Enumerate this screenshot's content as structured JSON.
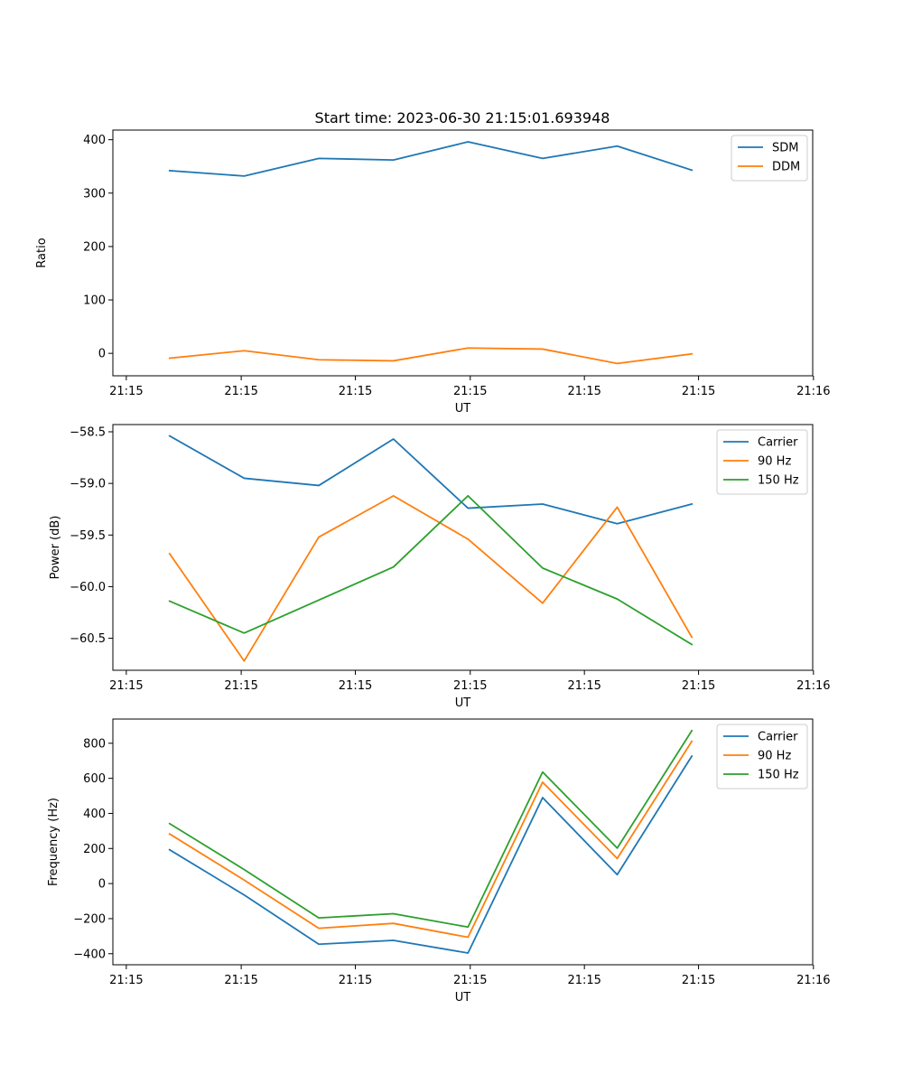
{
  "figure": {
    "title": "Start time: 2023-06-30 21:15:01.693948"
  },
  "chart_data": [
    {
      "type": "line",
      "title": "Start time: 2023-06-30 21:15:01.693948",
      "xlabel": "UT",
      "ylabel": "Ratio",
      "x": [
        0,
        1,
        2,
        3,
        4,
        5,
        6,
        7
      ],
      "xlim": [
        -0.76,
        8.62
      ],
      "x_ticks": [
        -0.58,
        0.96,
        2.49,
        4.03,
        5.56,
        7.09,
        8.63
      ],
      "x_tick_labels": [
        "21:15",
        "21:15",
        "21:15",
        "21:15",
        "21:15",
        "21:15",
        "21:16"
      ],
      "ylim": [
        -42,
        418
      ],
      "y_ticks": [
        0,
        100,
        200,
        300,
        400
      ],
      "y_tick_labels": [
        "0",
        "100",
        "200",
        "300",
        "400"
      ],
      "legend": "top-right",
      "grid": false,
      "series": [
        {
          "name": "SDM",
          "color": "#1f77b4",
          "values": [
            342,
            332,
            365,
            362,
            396,
            365,
            388,
            343
          ]
        },
        {
          "name": "DDM",
          "color": "#ff7f0e",
          "values": [
            -9,
            5,
            -12,
            -14,
            10,
            8,
            -19,
            -1
          ]
        }
      ]
    },
    {
      "type": "line",
      "title": "",
      "xlabel": "UT",
      "ylabel": "Power (dB)",
      "x": [
        0,
        1,
        2,
        3,
        4,
        5,
        6,
        7
      ],
      "xlim": [
        -0.76,
        8.62
      ],
      "x_ticks": [
        -0.58,
        0.96,
        2.49,
        4.03,
        5.56,
        7.09,
        8.63
      ],
      "x_tick_labels": [
        "21:15",
        "21:15",
        "21:15",
        "21:15",
        "21:15",
        "21:15",
        "21:16"
      ],
      "ylim": [
        -60.81,
        -58.43
      ],
      "y_ticks": [
        -58.5,
        -59.0,
        -59.5,
        -60.0,
        -60.5
      ],
      "y_tick_labels": [
        "−58.5",
        "−59.0",
        "−59.5",
        "−60.0",
        "−60.5"
      ],
      "legend": "top-right",
      "grid": false,
      "series": [
        {
          "name": "Carrier",
          "color": "#1f77b4",
          "values": [
            -58.54,
            -58.95,
            -59.02,
            -58.57,
            -59.24,
            -59.2,
            -59.39,
            -59.2
          ]
        },
        {
          "name": "90 Hz",
          "color": "#ff7f0e",
          "values": [
            -59.68,
            -60.72,
            -59.52,
            -59.12,
            -59.54,
            -60.16,
            -59.23,
            -60.49
          ]
        },
        {
          "name": "150 Hz",
          "color": "#2ca02c",
          "values": [
            -60.14,
            -60.45,
            -60.13,
            -59.81,
            -59.12,
            -59.82,
            -60.12,
            -60.56
          ]
        }
      ]
    },
    {
      "type": "line",
      "title": "",
      "xlabel": "UT",
      "ylabel": "Frequency (Hz)",
      "x": [
        0,
        1,
        2,
        3,
        4,
        5,
        6,
        7
      ],
      "xlim": [
        -0.76,
        8.62
      ],
      "x_ticks": [
        -0.58,
        0.96,
        2.49,
        4.03,
        5.56,
        7.09,
        8.63
      ],
      "x_tick_labels": [
        "21:15",
        "21:15",
        "21:15",
        "21:15",
        "21:15",
        "21:15",
        "21:16"
      ],
      "ylim": [
        -463,
        938
      ],
      "y_ticks": [
        800,
        600,
        400,
        200,
        0,
        -200,
        -400
      ],
      "y_tick_labels": [
        "800",
        "600",
        "400",
        "200",
        "0",
        "−200",
        "−400"
      ],
      "legend": "top-right",
      "grid": false,
      "series": [
        {
          "name": "Carrier",
          "color": "#1f77b4",
          "values": [
            193,
            -65,
            -346,
            -324,
            -396,
            490,
            51,
            727
          ]
        },
        {
          "name": "90 Hz",
          "color": "#ff7f0e",
          "values": [
            283,
            20,
            -255,
            -227,
            -306,
            578,
            143,
            811
          ]
        },
        {
          "name": "150 Hz",
          "color": "#2ca02c",
          "values": [
            342,
            80,
            -196,
            -172,
            -248,
            636,
            202,
            872
          ]
        }
      ]
    }
  ]
}
